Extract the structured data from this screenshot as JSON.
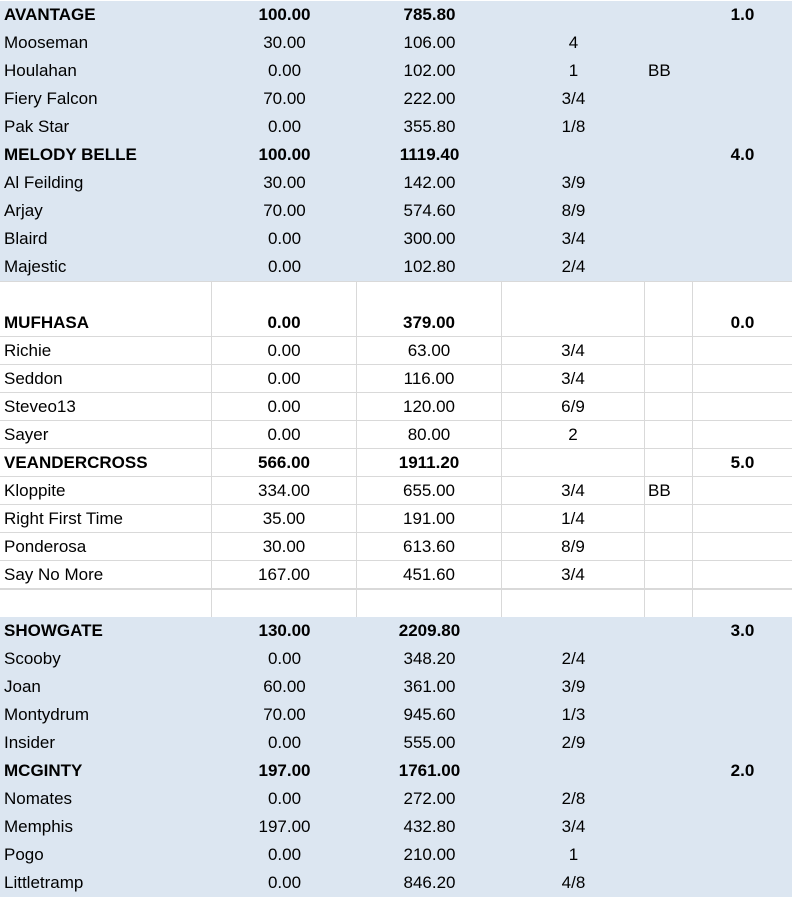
{
  "groups": [
    {
      "teams": [
        {
          "name": "AVANTAGE",
          "score": "100.00",
          "total": "785.80",
          "rank": "1.0",
          "players": [
            {
              "name": "Mooseman",
              "score": "30.00",
              "total": "106.00",
              "ratio": "4",
              "flag": ""
            },
            {
              "name": "Houlahan",
              "score": "0.00",
              "total": "102.00",
              "ratio": "1",
              "flag": "BB"
            },
            {
              "name": "Fiery Falcon",
              "score": "70.00",
              "total": "222.00",
              "ratio": "3/4",
              "flag": ""
            },
            {
              "name": "Pak Star",
              "score": "0.00",
              "total": "355.80",
              "ratio": "1/8",
              "flag": ""
            }
          ]
        },
        {
          "name": "MELODY BELLE",
          "score": "100.00",
          "total": "1119.40",
          "rank": "4.0",
          "players": [
            {
              "name": "Al Feilding",
              "score": "30.00",
              "total": "142.00",
              "ratio": "3/9",
              "flag": ""
            },
            {
              "name": "Arjay",
              "score": "70.00",
              "total": "574.60",
              "ratio": "8/9",
              "flag": ""
            },
            {
              "name": "Blaird",
              "score": "0.00",
              "total": "300.00",
              "ratio": "3/4",
              "flag": ""
            },
            {
              "name": "Majestic",
              "score": "0.00",
              "total": "102.80",
              "ratio": "2/4",
              "flag": ""
            }
          ]
        }
      ]
    },
    {
      "teams": [
        {
          "name": "MUFHASA",
          "score": "0.00",
          "total": "379.00",
          "rank": "0.0",
          "players": [
            {
              "name": "Richie",
              "score": "0.00",
              "total": "63.00",
              "ratio": "3/4",
              "flag": ""
            },
            {
              "name": "Seddon",
              "score": "0.00",
              "total": "116.00",
              "ratio": "3/4",
              "flag": ""
            },
            {
              "name": "Steveo13",
              "score": "0.00",
              "total": "120.00",
              "ratio": "6/9",
              "flag": ""
            },
            {
              "name": "Sayer",
              "score": "0.00",
              "total": "80.00",
              "ratio": "2",
              "flag": ""
            }
          ]
        },
        {
          "name": "VEANDERCROSS",
          "score": "566.00",
          "total": "1911.20",
          "rank": "5.0",
          "players": [
            {
              "name": "Kloppite",
              "score": "334.00",
              "total": "655.00",
              "ratio": "3/4",
              "flag": "BB"
            },
            {
              "name": "Right First Time",
              "score": "35.00",
              "total": "191.00",
              "ratio": "1/4",
              "flag": ""
            },
            {
              "name": "Ponderosa",
              "score": "30.00",
              "total": "613.60",
              "ratio": "8/9",
              "flag": ""
            },
            {
              "name": "Say No More",
              "score": "167.00",
              "total": "451.60",
              "ratio": "3/4",
              "flag": ""
            }
          ]
        }
      ]
    },
    {
      "teams": [
        {
          "name": "SHOWGATE",
          "score": "130.00",
          "total": "2209.80",
          "rank": "3.0",
          "players": [
            {
              "name": "Scooby",
              "score": "0.00",
              "total": "348.20",
              "ratio": "2/4",
              "flag": ""
            },
            {
              "name": "Joan",
              "score": "60.00",
              "total": "361.00",
              "ratio": "3/9",
              "flag": ""
            },
            {
              "name": "Montydrum",
              "score": "70.00",
              "total": "945.60",
              "ratio": "1/3",
              "flag": ""
            },
            {
              "name": "Insider",
              "score": "0.00",
              "total": "555.00",
              "ratio": "2/9",
              "flag": ""
            }
          ]
        },
        {
          "name": "MCGINTY",
          "score": "197.00",
          "total": "1761.00",
          "rank": "2.0",
          "players": [
            {
              "name": "Nomates",
              "score": "0.00",
              "total": "272.00",
              "ratio": "2/8",
              "flag": ""
            },
            {
              "name": "Memphis",
              "score": "197.00",
              "total": "432.80",
              "ratio": "3/4",
              "flag": ""
            },
            {
              "name": "Pogo",
              "score": "0.00",
              "total": "210.00",
              "ratio": "1",
              "flag": ""
            },
            {
              "name": "Littletramp",
              "score": "0.00",
              "total": "846.20",
              "ratio": "4/8",
              "flag": ""
            }
          ]
        }
      ]
    }
  ],
  "colors": {
    "group_fill_blue": "#dce6f1",
    "group_fill_white": "#ffffff",
    "gridline": "#d9d9d9"
  },
  "group_fills": [
    "blue",
    "white",
    "blue"
  ]
}
